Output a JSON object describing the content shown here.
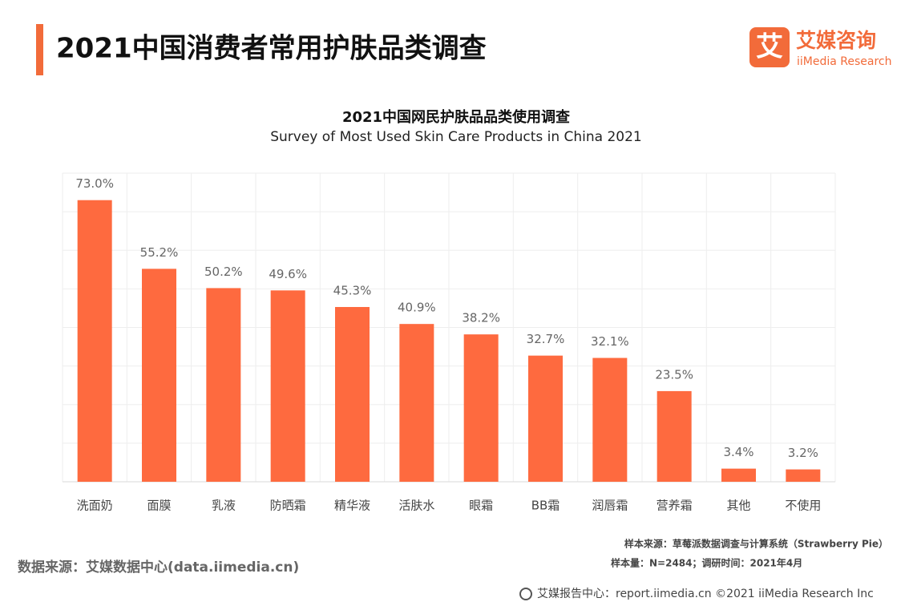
{
  "header": {
    "title": "2021中国消费者常用护肤品类调查",
    "logo_cn": "艾媒咨询",
    "logo_en": "iiMedia Research",
    "logo_icon": "艾"
  },
  "chart_data": {
    "type": "bar",
    "title": "2021中国网民护肤品品类使用调查",
    "subtitle": "Survey of Most Used Skin Care Products in China 2021",
    "categories": [
      "洗面奶",
      "面膜",
      "乳液",
      "防晒霜",
      "精华液",
      "活肤水",
      "眼霜",
      "BB霜",
      "润唇霜",
      "营养霜",
      "其他",
      "不使用"
    ],
    "values": [
      73.0,
      55.2,
      50.2,
      49.6,
      45.3,
      40.9,
      38.2,
      32.7,
      32.1,
      23.5,
      3.4,
      3.2
    ],
    "value_labels": [
      "73.0%",
      "55.2%",
      "50.2%",
      "49.6%",
      "45.3%",
      "40.9%",
      "38.2%",
      "32.7%",
      "32.1%",
      "23.5%",
      "3.4%",
      "3.2%"
    ],
    "color": "#fe6a3f",
    "ylim": [
      0,
      80
    ],
    "yticks": [
      0,
      10,
      20,
      30,
      40,
      50,
      60,
      70,
      80
    ],
    "grid": true
  },
  "notes": {
    "sample_source": "样本来源：草莓派数据调查与计算系统（Strawberry Pie）",
    "sample_size": "样本量：N=2484；调研时间：2021年4月"
  },
  "footer": {
    "data_source": "数据来源：艾媒数据中心(data.iimedia.cn)",
    "report_center": "艾媒报告中心：report.iimedia.cn  ©2021  iiMedia Research  Inc"
  }
}
